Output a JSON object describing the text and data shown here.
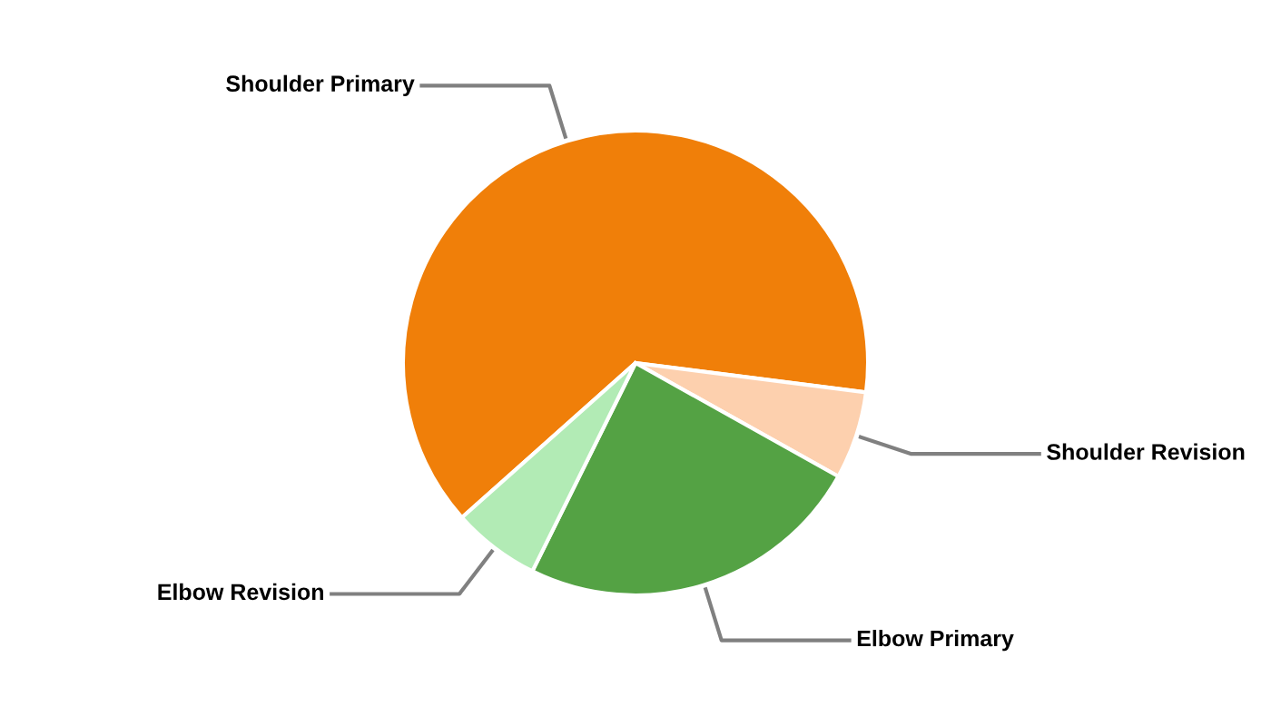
{
  "chart_data": {
    "type": "pie",
    "categories": [
      "Shoulder Primary",
      "Shoulder Revision",
      "Elbow Primary",
      "Elbow Revision"
    ],
    "values": [
      63.6,
      6.1,
      24.2,
      6.1
    ],
    "colors": [
      "#f07f09",
      "#fdd0ae",
      "#54a244",
      "#b2ebb5"
    ],
    "legend": false
  }
}
